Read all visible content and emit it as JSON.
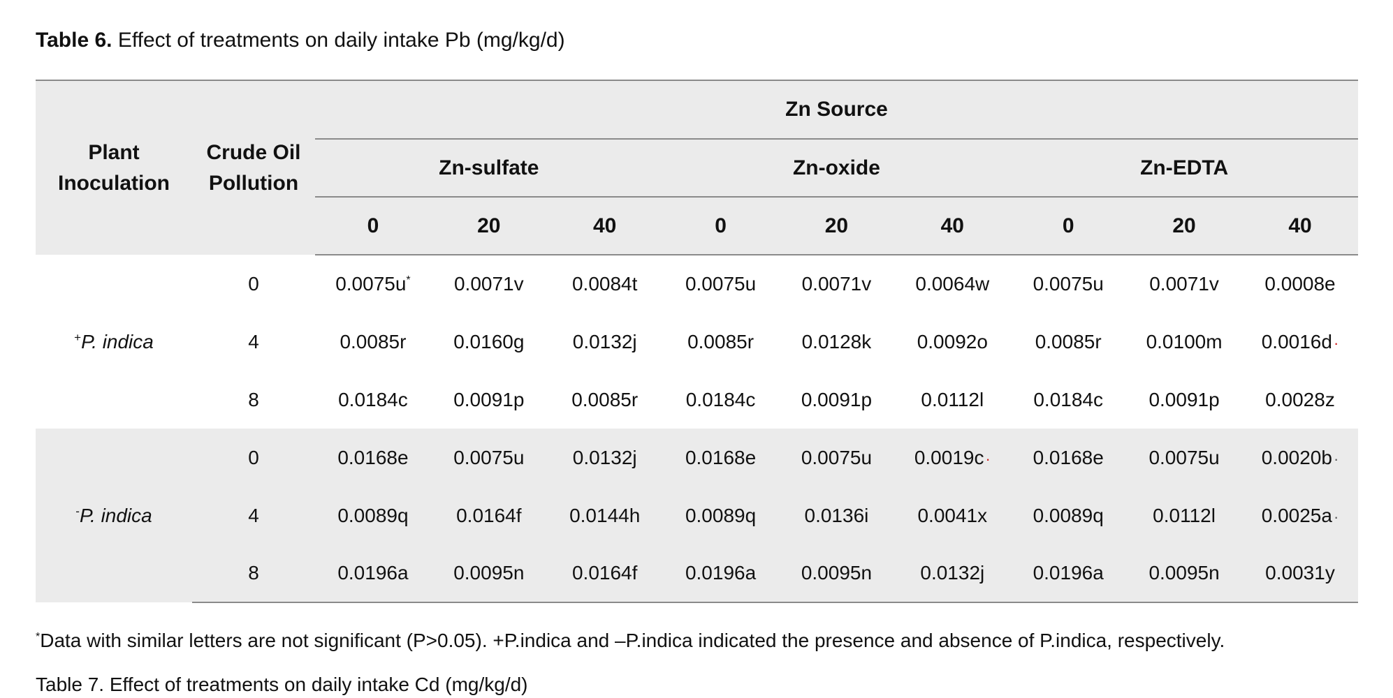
{
  "caption": {
    "label": "Table 6.",
    "text": " Effect of treatments on daily intake Pb (mg/kg/d)"
  },
  "header": {
    "plant_inoculation": "Plant Inoculation",
    "crude_oil_pollution": "Crude Oil Pollution",
    "zn_source": "Zn Source",
    "zn_groups": [
      "Zn-sulfate",
      "Zn-oxide",
      "Zn-EDTA"
    ],
    "levels": [
      "0",
      "20",
      "40",
      "0",
      "20",
      "40",
      "0",
      "20",
      "40"
    ]
  },
  "groups": [
    {
      "sign": "+",
      "plant": "P. indica",
      "rows": [
        {
          "oil": "0",
          "values": [
            "0.0075u",
            "0.0071v",
            "0.0084t",
            "0.0075u",
            "0.0071v",
            "0.0064w",
            "0.0075u",
            "0.0071v",
            "0.0008e"
          ]
        },
        {
          "oil": "4",
          "values": [
            "0.0085r",
            "0.0160g",
            "0.0132j",
            "0.0085r",
            "0.0128k",
            "0.0092o",
            "0.0085r",
            "0.0100m",
            "0.0016d"
          ]
        },
        {
          "oil": "8",
          "values": [
            "0.0184c",
            "0.0091p",
            "0.0085r",
            "0.0184c",
            "0.0091p",
            "0.0112l",
            "0.0184c",
            "0.0091p",
            "0.0028z"
          ]
        }
      ]
    },
    {
      "sign": "-",
      "plant": "P. indica",
      "rows": [
        {
          "oil": "0",
          "values": [
            "0.0168e",
            "0.0075u",
            "0.0132j",
            "0.0168e",
            "0.0075u",
            "0.0019c",
            "0.0168e",
            "0.0075u",
            "0.0020b"
          ]
        },
        {
          "oil": "4",
          "values": [
            "0.0089q",
            "0.0164f",
            "0.0144h",
            "0.0089q",
            "0.0136i",
            "0.0041x",
            "0.0089q",
            "0.0112l",
            "0.0025a"
          ]
        },
        {
          "oil": "8",
          "values": [
            "0.0196a",
            "0.0095n",
            "0.0164f",
            "0.0196a",
            "0.0095n",
            "0.0132j",
            "0.0196a",
            "0.0095n",
            "0.0031y"
          ]
        }
      ]
    }
  ],
  "first_value_marker": "*",
  "marker_dots": "·",
  "footnote": {
    "marker": "*",
    "text": "Data with similar letters are not significant (P>0.05). +P.indica and –P.indica indicated the presence and absence of P.indica, respectively."
  },
  "cutoff_text": "Table 7. Effect of treatments on daily intake Cd (mg/kg/d)"
}
